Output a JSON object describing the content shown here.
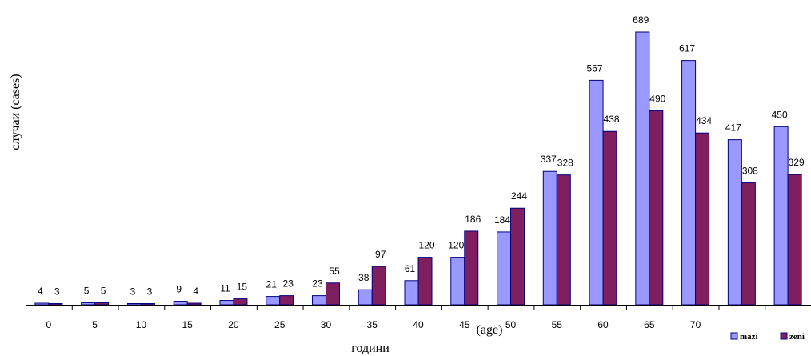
{
  "chart_data": {
    "type": "bar",
    "categories": [
      "0",
      "5",
      "10",
      "15",
      "20",
      "25",
      "30",
      "35",
      "40",
      "45",
      "50",
      "55",
      "60",
      "65",
      "70",
      "",
      ""
    ],
    "series": [
      {
        "name": "mazi",
        "values": [
          4,
          5,
          3,
          9,
          11,
          21,
          23,
          38,
          61,
          120,
          184,
          337,
          567,
          689,
          617,
          417,
          450
        ],
        "color": "#9999FF"
      },
      {
        "name": "zeni",
        "values": [
          3,
          5,
          3,
          4,
          15,
          23,
          55,
          97,
          120,
          186,
          244,
          328,
          438,
          490,
          434,
          308,
          329
        ],
        "color": "#7F1F5F"
      }
    ],
    "ylabel": "случаи (cases)",
    "xlabel": "години",
    "xlabel_extra": "(age)",
    "ylim": [
      0,
      700
    ],
    "grid": false,
    "legend": "bottom-right",
    "bar_border_color": "#000080"
  }
}
